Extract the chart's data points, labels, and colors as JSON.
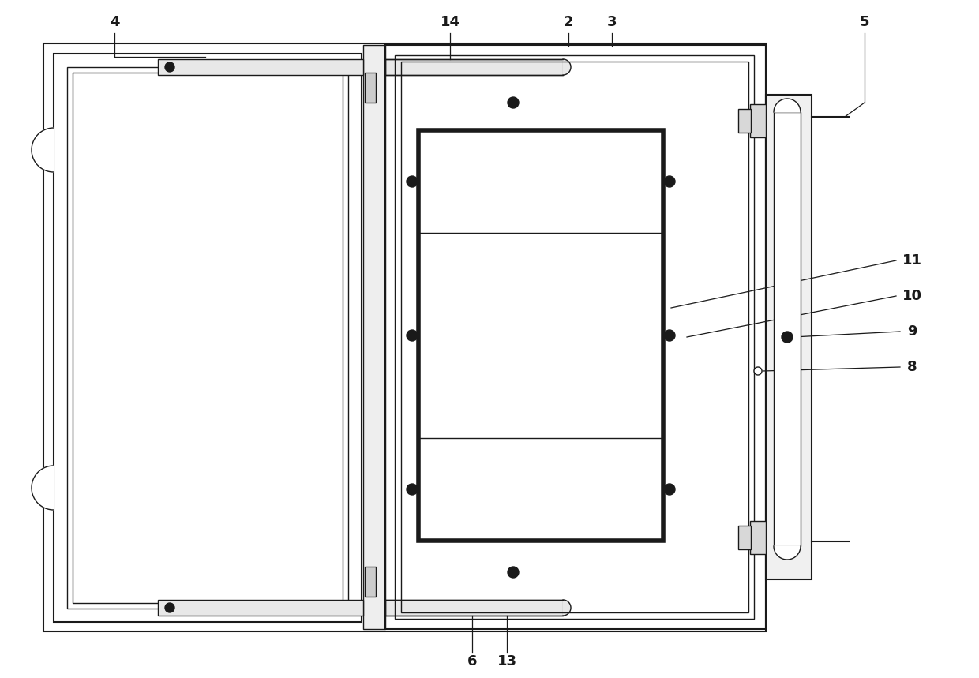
{
  "bg_color": "#ffffff",
  "line_color": "#1a1a1a",
  "fig_width": 12.4,
  "fig_height": 8.59
}
